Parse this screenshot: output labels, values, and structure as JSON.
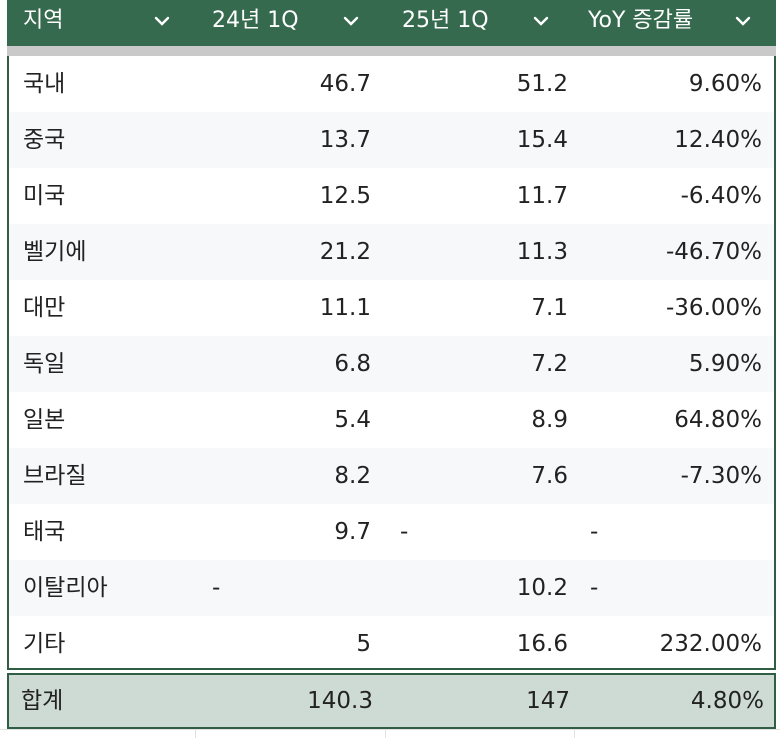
{
  "headers": [
    {
      "label": "지역"
    },
    {
      "label": "24년 1Q"
    },
    {
      "label": "25년 1Q"
    },
    {
      "label": "YoY 증감률"
    }
  ],
  "rows": [
    {
      "region": "국내",
      "q24": "46.7",
      "q25": "51.2",
      "yoy": "9.60%"
    },
    {
      "region": "중국",
      "q24": "13.7",
      "q25": "15.4",
      "yoy": "12.40%"
    },
    {
      "region": "미국",
      "q24": "12.5",
      "q25": "11.7",
      "yoy": "-6.40%"
    },
    {
      "region": "벨기에",
      "q24": "21.2",
      "q25": "11.3",
      "yoy": "-46.70%"
    },
    {
      "region": "대만",
      "q24": "11.1",
      "q25": "7.1",
      "yoy": "-36.00%"
    },
    {
      "region": "독일",
      "q24": "6.8",
      "q25": "7.2",
      "yoy": "5.90%"
    },
    {
      "region": "일본",
      "q24": "5.4",
      "q25": "8.9",
      "yoy": "64.80%"
    },
    {
      "region": "브라질",
      "q24": "8.2",
      "q25": "7.6",
      "yoy": "-7.30%"
    },
    {
      "region": "태국",
      "q24": "9.7",
      "q25": "-",
      "yoy": "-"
    },
    {
      "region": "이탈리아",
      "q24": "-",
      "q25": "10.2",
      "yoy": "-"
    },
    {
      "region": "기타",
      "q24": "5",
      "q25": "16.6",
      "yoy": "232.00%"
    }
  ],
  "total": {
    "region": "합계",
    "q24": "140.3",
    "q25": "147",
    "yoy": "4.80%"
  },
  "colors": {
    "header_bg": "#366a4e",
    "total_bg": "#cddbd4",
    "border": "#2f5e45"
  },
  "icons": {
    "filter": "chevron-down-icon"
  }
}
